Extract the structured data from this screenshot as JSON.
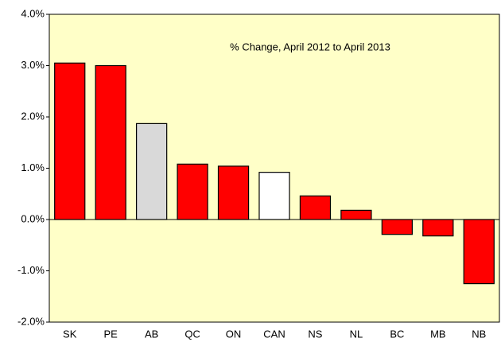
{
  "chart_data": {
    "type": "bar",
    "title": "% Change, April  2012 to  April 2013",
    "categories": [
      "SK",
      "PE",
      "AB",
      "QC",
      "ON",
      "CAN",
      "NS",
      "NL",
      "BC",
      "MB",
      "NB"
    ],
    "values": [
      3.05,
      3.0,
      1.87,
      1.08,
      1.04,
      0.92,
      0.46,
      0.18,
      -0.29,
      -0.32,
      -1.25
    ],
    "colors": [
      "#ff0000",
      "#ff0000",
      "#d9d9d9",
      "#ff0000",
      "#ff0000",
      "#ffffff",
      "#ff0000",
      "#ff0000",
      "#ff0000",
      "#ff0000",
      "#ff0000"
    ],
    "ylim": [
      -2,
      4
    ],
    "yticks": [
      {
        "value": -2,
        "label": "-2.0%"
      },
      {
        "value": -1,
        "label": "-1.0%"
      },
      {
        "value": 0,
        "label": "0.0%"
      },
      {
        "value": 1,
        "label": "1.0%"
      },
      {
        "value": 2,
        "label": "2.0%"
      },
      {
        "value": 3,
        "label": "3.0%"
      },
      {
        "value": 4,
        "label": "4.0%"
      }
    ],
    "grid": false
  }
}
